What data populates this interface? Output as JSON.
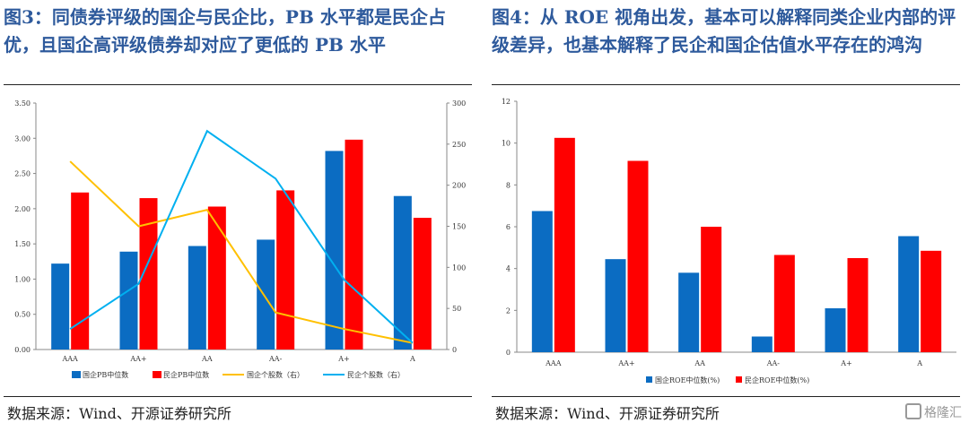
{
  "left": {
    "title": "图3：同债券评级的国企与民企比，PB 水平都是民企占优，且国企高评级债券却对应了更低的 PB 水平",
    "source": "数据来源：Wind、开源证券研究所"
  },
  "right": {
    "title": "图4：从 ROE 视角出发，基本可以解释同类企业内部的评级差异，也基本解释了民企和国企估值水平存在的鸿沟",
    "source": "数据来源：Wind、开源证券研究所"
  },
  "watermark": "格隆汇",
  "chart_data": [
    {
      "type": "bar+line",
      "categories": [
        "AAA",
        "AA+",
        "AA",
        "AA-",
        "A+",
        "A"
      ],
      "y_left": {
        "ylim": [
          0,
          3.5
        ],
        "ticks": [
          "0.00",
          "0.50",
          "1.00",
          "1.50",
          "2.00",
          "2.50",
          "3.00",
          "3.50"
        ]
      },
      "y_right": {
        "ylim": [
          0,
          300
        ],
        "ticks": [
          "0",
          "50",
          "100",
          "150",
          "200",
          "250",
          "300"
        ]
      },
      "bar_series": [
        {
          "name": "国企PB中位数",
          "color": "#0b6cc2",
          "values": [
            1.22,
            1.39,
            1.47,
            1.56,
            2.82,
            2.18
          ]
        },
        {
          "name": "民企PB中位数",
          "color": "#ff0000",
          "values": [
            2.23,
            2.15,
            2.03,
            2.26,
            2.98,
            1.87
          ]
        }
      ],
      "line_series": [
        {
          "name": "国企个股数（右）",
          "color": "#ffc000",
          "axis": "right",
          "values": [
            229,
            150,
            170,
            45,
            25,
            8
          ]
        },
        {
          "name": "民企个股数（右）",
          "color": "#00b0f0",
          "axis": "right",
          "values": [
            25,
            80,
            266,
            208,
            85,
            8
          ]
        }
      ],
      "legend_position": "bottom",
      "grid": false
    },
    {
      "type": "bar",
      "categories": [
        "AAA",
        "AA+",
        "AA",
        "AA-",
        "A+",
        "A"
      ],
      "ylim": [
        0,
        12
      ],
      "ticks": [
        "0",
        "2",
        "4",
        "6",
        "8",
        "10",
        "12"
      ],
      "series": [
        {
          "name": "国企ROE中位数(%)",
          "color": "#0b6cc2",
          "values": [
            6.75,
            4.45,
            3.8,
            0.75,
            2.1,
            5.55
          ]
        },
        {
          "name": "民企ROE中位数(%)",
          "color": "#ff0000",
          "values": [
            10.25,
            9.15,
            6.0,
            4.65,
            4.5,
            4.85
          ]
        }
      ],
      "legend_position": "bottom",
      "grid": false
    }
  ]
}
